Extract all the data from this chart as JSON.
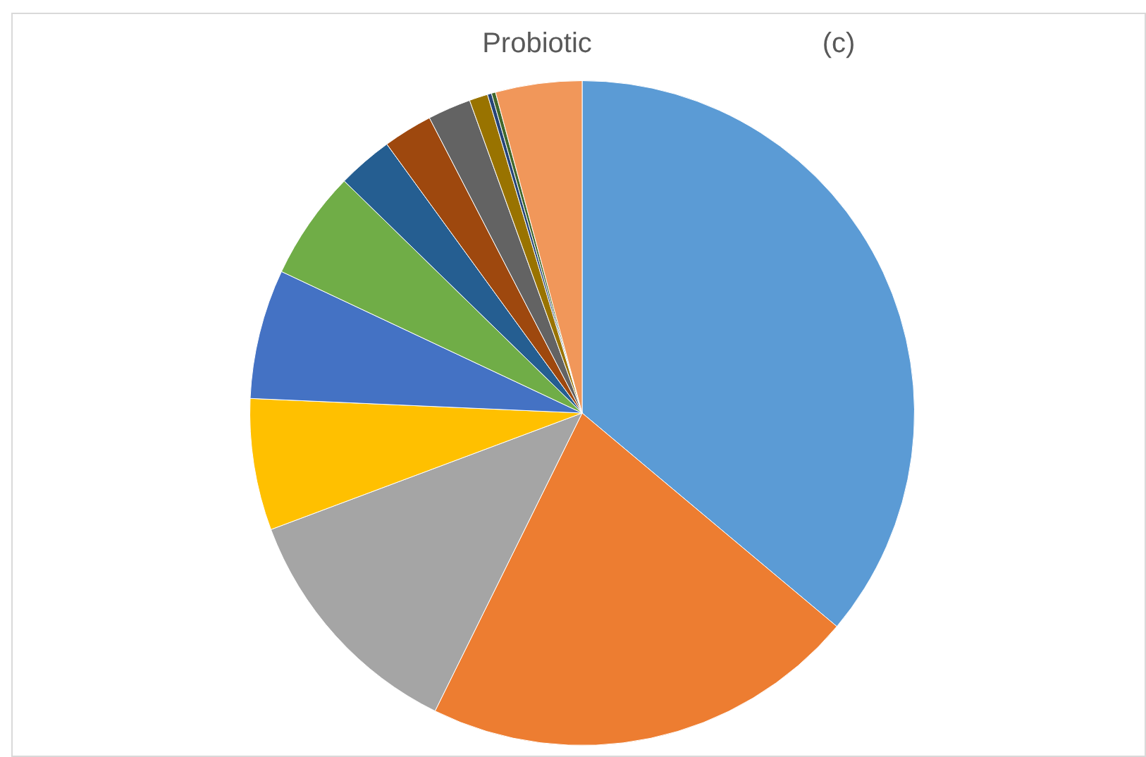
{
  "chart_data": {
    "type": "pie",
    "title": "Probiotic",
    "annotations": [
      "(c)"
    ],
    "categories": [
      null,
      null,
      null,
      null,
      null,
      null,
      null,
      null,
      null,
      null,
      null,
      null,
      null
    ],
    "values": [
      36.1,
      21.2,
      12.0,
      6.4,
      6.3,
      5.3,
      2.7,
      2.4,
      2.1,
      0.9,
      0.2,
      0.2,
      4.2
    ],
    "colors": [
      "#5b9bd5",
      "#ed7d31",
      "#a5a5a5",
      "#ffc000",
      "#4472c4",
      "#70ad47",
      "#255e91",
      "#9e480e",
      "#636363",
      "#997300",
      "#264478",
      "#43682b",
      "#f1975a"
    ],
    "legend": false
  }
}
